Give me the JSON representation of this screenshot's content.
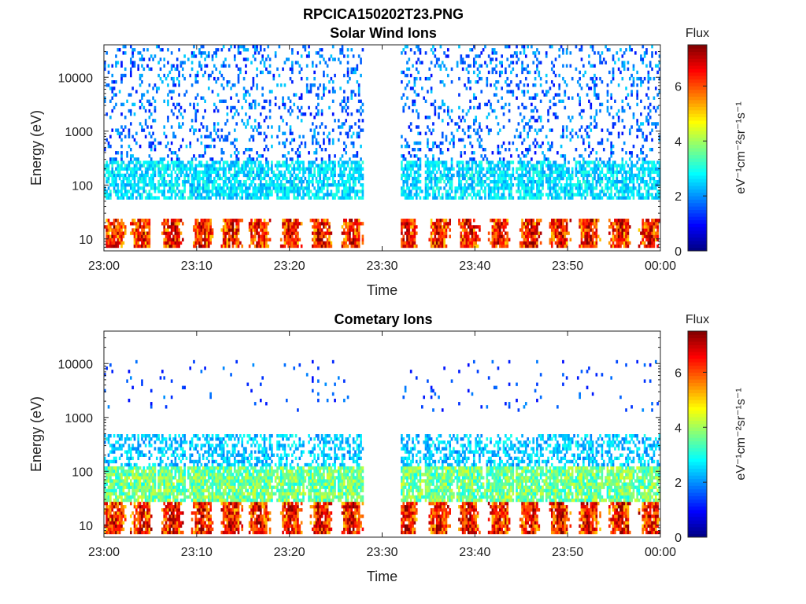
{
  "figure_title": "RPCICA150202T23.PNG",
  "colors": {
    "colormap": [
      "#00007f",
      "#0000ff",
      "#007fff",
      "#00ffff",
      "#7fff7f",
      "#ffff00",
      "#ff7f00",
      "#ff0000",
      "#7f0000"
    ],
    "axis": "#222222",
    "background": "#ffffff"
  },
  "chart_data": [
    {
      "type": "heatmap",
      "title": "Solar Wind Ions",
      "xlabel": "Time",
      "ylabel": "Energy (eV)",
      "x_ticks": [
        "23:00",
        "23:10",
        "23:20",
        "23:30",
        "23:40",
        "23:50",
        "00:00"
      ],
      "x_range_minutes": [
        0,
        60
      ],
      "y_scale": "log",
      "y_ticks": [
        10,
        100,
        1000,
        10000
      ],
      "y_tick_labels": [
        "10",
        "100",
        "1000",
        "10000"
      ],
      "y_range": [
        6,
        40000
      ],
      "colorbar": {
        "title": "Flux",
        "label": "eV⁻¹cm⁻²sr⁻¹s⁻¹",
        "ticks": [
          0,
          2,
          4,
          6
        ],
        "range": [
          0,
          7.5
        ]
      },
      "sweep_times_min": [
        1.0,
        4.0,
        7.3,
        10.5,
        13.6,
        16.6,
        20.0,
        23.3,
        26.6,
        32.5,
        36.0,
        39.3,
        42.6,
        45.9,
        49.1,
        52.3,
        55.6,
        58.8
      ],
      "data_gap_minutes": [
        27.8,
        31.8
      ],
      "bands": [
        {
          "energy_range": [
            7,
            25
          ],
          "flux_range": [
            5.0,
            7.2
          ],
          "density": 0.9
        },
        {
          "energy_range": [
            55,
            300
          ],
          "flux_range": [
            2.0,
            3.2
          ],
          "density": 0.45
        },
        {
          "energy_range": [
            300,
            40000
          ],
          "flux_range": [
            1.0,
            2.5
          ],
          "density": 0.12
        }
      ]
    },
    {
      "type": "heatmap",
      "title": "Cometary Ions",
      "xlabel": "Time",
      "ylabel": "Energy (eV)",
      "x_ticks": [
        "23:00",
        "23:10",
        "23:20",
        "23:30",
        "23:40",
        "23:50",
        "00:00"
      ],
      "x_range_minutes": [
        0,
        60
      ],
      "y_scale": "log",
      "y_ticks": [
        10,
        100,
        1000,
        10000
      ],
      "y_tick_labels": [
        "10",
        "100",
        "1000",
        "10000"
      ],
      "y_range": [
        6,
        40000
      ],
      "colorbar": {
        "title": "Flux",
        "label": "eV⁻¹cm⁻²sr⁻¹s⁻¹",
        "ticks": [
          0,
          2,
          4,
          6
        ],
        "range": [
          0,
          7.5
        ]
      },
      "sweep_times_min": [
        1.0,
        4.0,
        7.3,
        10.5,
        13.6,
        16.6,
        20.0,
        23.3,
        26.6,
        32.5,
        36.0,
        39.3,
        42.6,
        45.9,
        49.1,
        52.3,
        55.6,
        58.8
      ],
      "data_gap_minutes": [
        27.8,
        31.8
      ],
      "bands": [
        {
          "energy_range": [
            7,
            28
          ],
          "flux_range": [
            5.0,
            7.3
          ],
          "density": 0.92
        },
        {
          "energy_range": [
            28,
            120
          ],
          "flux_range": [
            2.8,
            4.5
          ],
          "density": 0.55
        },
        {
          "energy_range": [
            120,
            500
          ],
          "flux_range": [
            1.8,
            3.0
          ],
          "density": 0.3
        },
        {
          "energy_range": [
            1200,
            12000
          ],
          "flux_range": [
            1.0,
            2.0
          ],
          "density": 0.02
        }
      ]
    }
  ]
}
